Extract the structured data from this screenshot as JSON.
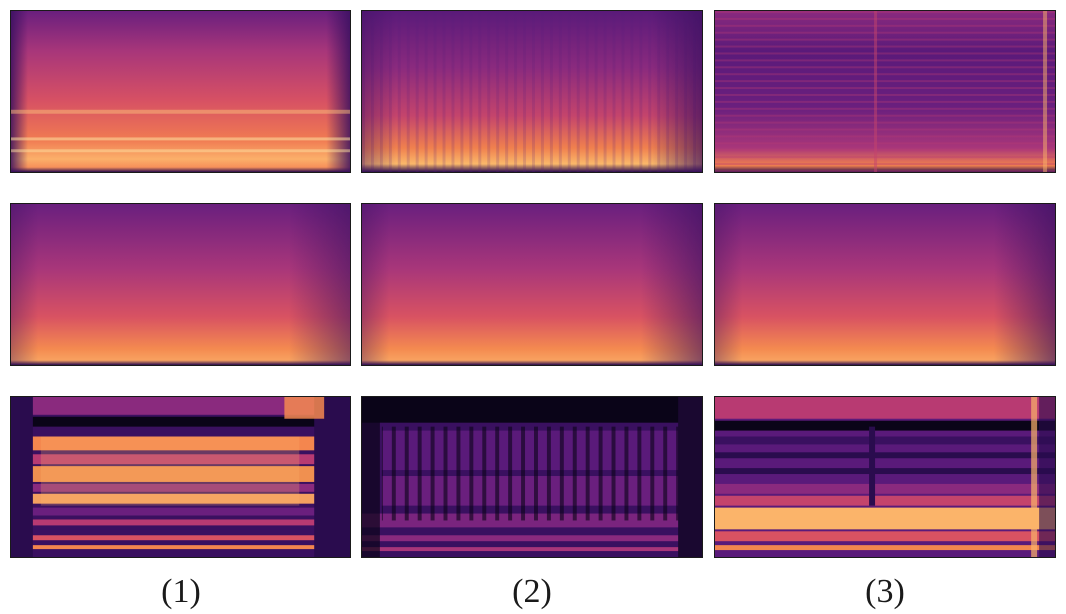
{
  "figure": {
    "column_labels": [
      "(1)",
      "(2)",
      "(3)"
    ],
    "rows": 3,
    "columns": 3,
    "colormap": {
      "name": "magma",
      "stops": [
        "#0a0418",
        "#2a0c4e",
        "#5a1a7a",
        "#8a2a7e",
        "#b83a72",
        "#e05a5e",
        "#f4864e",
        "#fbb46a",
        "#fde2a0"
      ]
    }
  }
}
